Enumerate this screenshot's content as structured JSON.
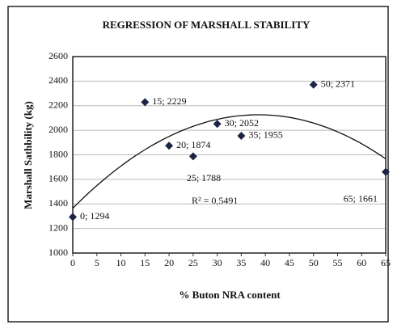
{
  "chart_data": {
    "type": "scatter",
    "title": "REGRESSION OF MARSHALL STABILITY",
    "x_label": "% Buton NRA content",
    "y_label": "Marshall Sathbility (kg)",
    "x": [
      0,
      15,
      20,
      25,
      30,
      35,
      50,
      65
    ],
    "values": [
      1294,
      2229,
      1874,
      1788,
      2052,
      1955,
      2371,
      1661
    ],
    "value_labels": [
      "0; 1294",
      "15; 2229",
      "20; 1874",
      "25; 1788",
      "30; 2052",
      "35; 1955",
      "50; 2371",
      "65; 1661"
    ],
    "color": "#1c2545",
    "trendline": "polynomial",
    "annotation": "R² = 0,5491",
    "xlim": [
      0,
      65
    ],
    "xticks": [
      0,
      5,
      10,
      15,
      20,
      25,
      30,
      35,
      40,
      45,
      50,
      55,
      60,
      65
    ],
    "ylim": [
      1000,
      2600
    ],
    "yticks": [
      1000,
      1200,
      1400,
      1600,
      1800,
      2000,
      2200,
      2400,
      2600
    ],
    "grid": true
  }
}
